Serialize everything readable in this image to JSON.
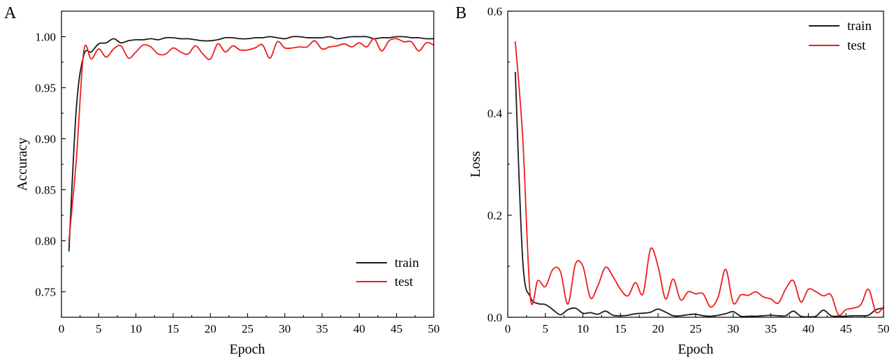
{
  "chart_data": [
    {
      "panel_label": "A",
      "type": "line",
      "title": "",
      "xlabel": "Epoch",
      "ylabel": "Accuracy",
      "xlim": [
        0,
        50
      ],
      "ylim": [
        0.725,
        1.025
      ],
      "xticks": [
        0,
        5,
        10,
        15,
        20,
        25,
        30,
        35,
        40,
        45,
        50
      ],
      "xtick_labels": [
        "0",
        "5",
        "10",
        "15",
        "20",
        "25",
        "30",
        "35",
        "40",
        "45",
        "50"
      ],
      "yticks": [
        0.75,
        0.8,
        0.85,
        0.9,
        0.95,
        1.0
      ],
      "ytick_labels": [
        "0.75",
        "0.80",
        "0.85",
        "0.90",
        "0.95",
        "1.00"
      ],
      "legend_position": "bottom-right",
      "grid": false,
      "series": [
        {
          "name": "train",
          "color": "#1a1a1a",
          "x": [
            1,
            2,
            3,
            4,
            5,
            6,
            7,
            8,
            9,
            10,
            11,
            12,
            13,
            14,
            15,
            16,
            17,
            18,
            19,
            20,
            21,
            22,
            23,
            24,
            25,
            26,
            27,
            28,
            29,
            30,
            31,
            32,
            33,
            34,
            35,
            36,
            37,
            38,
            39,
            40,
            41,
            42,
            43,
            44,
            45,
            46,
            47,
            48,
            49,
            50
          ],
          "values": [
            0.79,
            0.93,
            0.982,
            0.985,
            0.993,
            0.994,
            0.998,
            0.994,
            0.996,
            0.997,
            0.997,
            0.998,
            0.997,
            0.999,
            0.999,
            0.998,
            0.998,
            0.997,
            0.996,
            0.996,
            0.997,
            0.999,
            0.999,
            0.998,
            0.998,
            0.999,
            0.999,
            1.0,
            0.999,
            0.998,
            1.0,
            1.0,
            0.999,
            0.999,
            0.999,
            1.0,
            0.998,
            0.999,
            1.0,
            1.0,
            1.0,
            0.998,
            0.999,
            0.999,
            1.0,
            1.0,
            0.999,
            0.999,
            0.998,
            0.998
          ]
        },
        {
          "name": "test",
          "color": "#ee1c1c",
          "x": [
            1,
            2,
            3,
            4,
            5,
            6,
            7,
            8,
            9,
            10,
            11,
            12,
            13,
            14,
            15,
            16,
            17,
            18,
            19,
            20,
            21,
            22,
            23,
            24,
            25,
            26,
            27,
            28,
            29,
            30,
            31,
            32,
            33,
            34,
            35,
            36,
            37,
            38,
            39,
            40,
            41,
            42,
            43,
            44,
            45,
            46,
            47,
            48,
            49,
            50
          ],
          "values": [
            0.8,
            0.88,
            0.986,
            0.978,
            0.988,
            0.98,
            0.988,
            0.991,
            0.979,
            0.985,
            0.992,
            0.99,
            0.983,
            0.983,
            0.989,
            0.985,
            0.983,
            0.991,
            0.983,
            0.978,
            0.993,
            0.985,
            0.991,
            0.987,
            0.987,
            0.989,
            0.992,
            0.979,
            0.995,
            0.989,
            0.989,
            0.99,
            0.99,
            0.996,
            0.988,
            0.99,
            0.991,
            0.993,
            0.99,
            0.994,
            0.99,
            0.998,
            0.986,
            0.996,
            0.998,
            0.995,
            0.995,
            0.986,
            0.994,
            0.992
          ]
        }
      ]
    },
    {
      "panel_label": "B",
      "type": "line",
      "title": "",
      "xlabel": "Epoch",
      "ylabel": "Loss",
      "xlim": [
        0,
        50
      ],
      "ylim": [
        0,
        0.6
      ],
      "xticks": [
        0,
        5,
        10,
        15,
        20,
        25,
        30,
        35,
        40,
        45,
        50
      ],
      "xtick_labels": [
        "0",
        "5",
        "10",
        "15",
        "20",
        "25",
        "30",
        "35",
        "40",
        "45",
        "50"
      ],
      "yticks": [
        0.0,
        0.2,
        0.4,
        0.6
      ],
      "ytick_labels": [
        "0.0",
        "0.2",
        "0.4",
        "0.6"
      ],
      "legend_position": "top-right",
      "grid": false,
      "series": [
        {
          "name": "train",
          "color": "#1a1a1a",
          "x": [
            1,
            2,
            3,
            4,
            5,
            6,
            7,
            8,
            9,
            10,
            11,
            12,
            13,
            14,
            15,
            16,
            17,
            18,
            19,
            20,
            21,
            22,
            23,
            24,
            25,
            26,
            27,
            28,
            29,
            30,
            31,
            32,
            33,
            34,
            35,
            36,
            37,
            38,
            39,
            40,
            41,
            42,
            43,
            44,
            45,
            46,
            47,
            48,
            49,
            50
          ],
          "values": [
            0.48,
            0.11,
            0.04,
            0.027,
            0.025,
            0.015,
            0.005,
            0.015,
            0.018,
            0.008,
            0.009,
            0.006,
            0.012,
            0.004,
            0.003,
            0.004,
            0.007,
            0.008,
            0.01,
            0.016,
            0.01,
            0.003,
            0.003,
            0.005,
            0.006,
            0.003,
            0.002,
            0.004,
            0.007,
            0.011,
            0.002,
            0.002,
            0.002,
            0.003,
            0.004,
            0.003,
            0.003,
            0.012,
            0.002,
            0.001,
            0.002,
            0.014,
            0.003,
            0.002,
            0.002,
            0.003,
            0.003,
            0.004,
            0.015,
            0.018
          ]
        },
        {
          "name": "test",
          "color": "#ee1c1c",
          "x": [
            1,
            2,
            3,
            4,
            5,
            6,
            7,
            8,
            9,
            10,
            11,
            12,
            13,
            14,
            15,
            16,
            17,
            18,
            19,
            20,
            21,
            22,
            23,
            24,
            25,
            26,
            27,
            28,
            29,
            30,
            31,
            32,
            33,
            34,
            35,
            36,
            37,
            38,
            39,
            40,
            41,
            42,
            43,
            44,
            45,
            46,
            47,
            48,
            49,
            50
          ],
          "values": [
            0.54,
            0.35,
            0.04,
            0.072,
            0.06,
            0.094,
            0.09,
            0.026,
            0.104,
            0.1,
            0.038,
            0.062,
            0.098,
            0.08,
            0.055,
            0.042,
            0.068,
            0.046,
            0.134,
            0.1,
            0.036,
            0.075,
            0.034,
            0.05,
            0.046,
            0.046,
            0.02,
            0.04,
            0.094,
            0.028,
            0.044,
            0.043,
            0.05,
            0.04,
            0.036,
            0.028,
            0.056,
            0.072,
            0.03,
            0.055,
            0.05,
            0.042,
            0.044,
            0.005,
            0.015,
            0.018,
            0.025,
            0.055,
            0.01,
            0.02
          ]
        }
      ]
    }
  ]
}
